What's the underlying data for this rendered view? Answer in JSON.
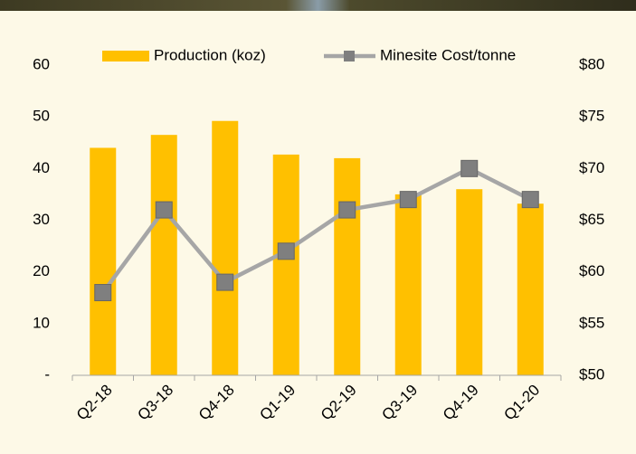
{
  "chart_data": {
    "type": "bar-line",
    "categories": [
      "Q2-18",
      "Q3-18",
      "Q4-18",
      "Q1-19",
      "Q2-19",
      "Q3-19",
      "Q4-19",
      "Q1-20"
    ],
    "series": [
      {
        "name": "Production (koz)",
        "color": "#ffc000",
        "type": "bar",
        "values": [
          44,
          46.5,
          49.2,
          42.7,
          42,
          35,
          36,
          33.2
        ]
      },
      {
        "name": "Minesite Cost/tonne",
        "color": "#a6a6a6",
        "marker_color": "#7f7f7f",
        "type": "line",
        "axis": "y2",
        "values": [
          58,
          66,
          59,
          62,
          66,
          67,
          70,
          67
        ]
      }
    ],
    "ylim": [
      0,
      60
    ],
    "yticks": [
      {
        "value": 0,
        "label": "-"
      },
      10,
      20,
      30,
      40,
      50,
      60
    ],
    "y2lim": [
      50,
      80
    ],
    "y2ticks": [
      {
        "value": 50,
        "label": "$50"
      },
      {
        "value": 55,
        "label": "$55"
      },
      {
        "value": 60,
        "label": "$60"
      },
      {
        "value": 65,
        "label": "$65"
      },
      {
        "value": 70,
        "label": "$70"
      },
      {
        "value": 75,
        "label": "$75"
      },
      {
        "value": 80,
        "label": "$80"
      }
    ],
    "grid": false,
    "legend": "top"
  }
}
